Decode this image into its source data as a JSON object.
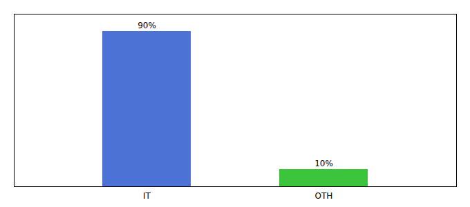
{
  "chart_data": {
    "type": "bar",
    "categories": [
      "IT",
      "OTH"
    ],
    "values": [
      90,
      10
    ],
    "value_labels": [
      "90%",
      "10%"
    ],
    "colors": [
      "#4C72D5",
      "#3DC43D"
    ],
    "data_labels": true,
    "ylim": [
      0,
      100
    ],
    "grid": false,
    "tick_labels": "x"
  }
}
